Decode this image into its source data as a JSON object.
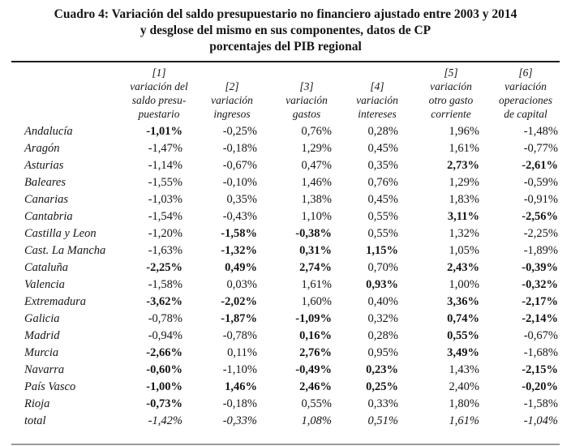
{
  "title": {
    "line1": "Cuadro 4: Variación del saldo presupuestario no financiero ajustado entre 2003 y 2014",
    "line2": "y desglose del mismo en sus componentes, datos de CP",
    "line3": "porcentajes del PIB regional"
  },
  "table": {
    "columns": [
      {
        "id": "[1]",
        "label_lines": [
          "[1]",
          "variación del",
          "saldo presu-",
          "puestario"
        ]
      },
      {
        "id": "[2]",
        "label_lines": [
          "[2]",
          "variación",
          "ingresos"
        ]
      },
      {
        "id": "[3]",
        "label_lines": [
          "[3]",
          "variación",
          "gastos"
        ]
      },
      {
        "id": "[4]",
        "label_lines": [
          "[4]",
          "variación",
          "intereses"
        ]
      },
      {
        "id": "[5]",
        "label_lines": [
          "[5]",
          "variación",
          "otro gasto",
          "corriente"
        ]
      },
      {
        "id": "[6]",
        "label_lines": [
          "[6]",
          "variación",
          "operaciones",
          "de capital"
        ]
      }
    ],
    "rows": [
      {
        "name": "Andalucía",
        "values": [
          "-1,01%",
          "-0,25%",
          "0,76%",
          "0,28%",
          "1,96%",
          "-1,48%"
        ],
        "bold": [
          true,
          false,
          false,
          false,
          false,
          false
        ],
        "italic": false
      },
      {
        "name": "Aragón",
        "values": [
          "-1,47%",
          "-0,18%",
          "1,29%",
          "0,45%",
          "1,61%",
          "-0,77%"
        ],
        "bold": [
          false,
          false,
          false,
          false,
          false,
          false
        ],
        "italic": false
      },
      {
        "name": "Asturias",
        "values": [
          "-1,14%",
          "-0,67%",
          "0,47%",
          "0,35%",
          "2,73%",
          "-2,61%"
        ],
        "bold": [
          false,
          false,
          false,
          false,
          true,
          true
        ],
        "italic": false
      },
      {
        "name": "Baleares",
        "values": [
          "-1,55%",
          "-0,10%",
          "1,46%",
          "0,76%",
          "1,29%",
          "-0,59%"
        ],
        "bold": [
          false,
          false,
          false,
          false,
          false,
          false
        ],
        "italic": false
      },
      {
        "name": "Canarias",
        "values": [
          "-1,03%",
          "0,35%",
          "1,38%",
          "0,45%",
          "1,83%",
          "-0,91%"
        ],
        "bold": [
          false,
          false,
          false,
          false,
          false,
          false
        ],
        "italic": false
      },
      {
        "name": "Cantabria",
        "values": [
          "-1,54%",
          "-0,43%",
          "1,10%",
          "0,55%",
          "3,11%",
          "-2,56%"
        ],
        "bold": [
          false,
          false,
          false,
          false,
          true,
          true
        ],
        "italic": false
      },
      {
        "name": "Castilla y Leon",
        "values": [
          "-1,20%",
          "-1,58%",
          "-0,38%",
          "0,55%",
          "1,32%",
          "-2,25%"
        ],
        "bold": [
          false,
          true,
          true,
          false,
          false,
          false
        ],
        "italic": false
      },
      {
        "name": "Cast. La Mancha",
        "values": [
          "-1,63%",
          "-1,32%",
          "0,31%",
          "1,15%",
          "1,05%",
          "-1,89%"
        ],
        "bold": [
          false,
          true,
          true,
          true,
          false,
          false
        ],
        "italic": false
      },
      {
        "name": "Cataluña",
        "values": [
          "-2,25%",
          "0,49%",
          "2,74%",
          "0,70%",
          "2,43%",
          "-0,39%"
        ],
        "bold": [
          true,
          true,
          true,
          false,
          true,
          true
        ],
        "italic": false
      },
      {
        "name": "Valencia",
        "values": [
          "-1,58%",
          "0,03%",
          "1,61%",
          "0,93%",
          "1,00%",
          "-0,32%"
        ],
        "bold": [
          false,
          false,
          false,
          true,
          false,
          true
        ],
        "italic": false
      },
      {
        "name": "Extremadura",
        "values": [
          "-3,62%",
          "-2,02%",
          "1,60%",
          "0,40%",
          "3,36%",
          "-2,17%"
        ],
        "bold": [
          true,
          true,
          false,
          false,
          true,
          true
        ],
        "italic": false
      },
      {
        "name": "Galicia",
        "values": [
          "-0,78%",
          "-1,87%",
          "-1,09%",
          "0,32%",
          "0,74%",
          "-2,14%"
        ],
        "bold": [
          false,
          true,
          true,
          false,
          true,
          true
        ],
        "italic": false
      },
      {
        "name": "Madrid",
        "values": [
          "-0,94%",
          "-0,78%",
          "0,16%",
          "0,28%",
          "0,55%",
          "-0,67%"
        ],
        "bold": [
          false,
          false,
          true,
          false,
          true,
          false
        ],
        "italic": false
      },
      {
        "name": "Murcia",
        "values": [
          "-2,66%",
          "0,11%",
          "2,76%",
          "0,95%",
          "3,49%",
          "-1,68%"
        ],
        "bold": [
          true,
          false,
          true,
          false,
          true,
          false
        ],
        "italic": false
      },
      {
        "name": "Navarra",
        "values": [
          "-0,60%",
          "-1,10%",
          "-0,49%",
          "0,23%",
          "1,43%",
          "-2,15%"
        ],
        "bold": [
          true,
          false,
          true,
          true,
          false,
          true
        ],
        "italic": false
      },
      {
        "name": "País Vasco",
        "values": [
          "-1,00%",
          "1,46%",
          "2,46%",
          "0,25%",
          "2,40%",
          "-0,20%"
        ],
        "bold": [
          true,
          true,
          true,
          true,
          false,
          true
        ],
        "italic": false
      },
      {
        "name": "Rioja",
        "values": [
          "-0,73%",
          "-0,18%",
          "0,55%",
          "0,33%",
          "1,80%",
          "-1,58%"
        ],
        "bold": [
          true,
          false,
          false,
          false,
          false,
          false
        ],
        "italic": false
      },
      {
        "name": "total",
        "values": [
          "-1,42%",
          "-0,33%",
          "1,08%",
          "0,51%",
          "1,61%",
          "-1,04%"
        ],
        "bold": [
          false,
          false,
          false,
          false,
          false,
          false
        ],
        "italic": true
      }
    ]
  },
  "colors": {
    "text": "#151515",
    "top_rule": "#1c1c1c",
    "bottom_rule": "#9a9a9a",
    "background": "#ffffff"
  }
}
